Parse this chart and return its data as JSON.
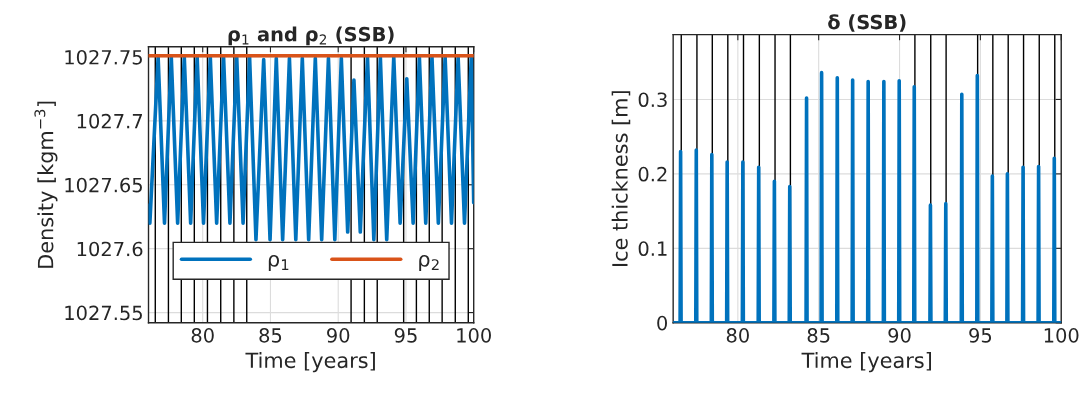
{
  "chart_data": [
    {
      "type": "line",
      "title": "ρ$_{1}$ and ρ$_{2}$ (SSB)",
      "xlabel": "Time [years]",
      "ylabel": "Density [kgm$^{−3}$]",
      "xlim": [
        76,
        100
      ],
      "xticks": [
        80,
        85,
        90,
        95,
        100
      ],
      "ylim": [
        1027.542,
        1027.758
      ],
      "yticks": [
        1027.55,
        1027.6,
        1027.65,
        1027.7,
        1027.75
      ],
      "grid": true,
      "legend": "bottom",
      "series": [
        {
          "name": "ρ$_{1}$",
          "color": "#0072bd",
          "x": [
            76,
            76.1,
            76.71,
            77.18,
            77.68,
            78.15,
            78.64,
            79.11,
            79.59,
            80.06,
            80.56,
            81.03,
            81.54,
            82.01,
            82.51,
            82.98,
            83.46,
            83.93,
            84.5,
            84.97,
            85.43,
            85.9,
            86.4,
            86.87,
            87.35,
            87.82,
            88.31,
            88.78,
            89.28,
            89.75,
            90.23,
            90.7,
            91.16,
            91.63,
            92.16,
            92.63,
            93.11,
            93.58,
            94.1,
            94.57,
            95.06,
            95.53,
            95.99,
            96.46,
            96.92,
            97.39,
            97.89,
            98.36,
            98.85,
            99.32,
            99.82,
            100
          ],
          "values": [
            1027.634,
            1027.62,
            1027.75,
            1027.62,
            1027.75,
            1027.62,
            1027.75,
            1027.62,
            1027.75,
            1027.62,
            1027.75,
            1027.62,
            1027.75,
            1027.62,
            1027.75,
            1027.62,
            1027.75,
            1027.607,
            1027.748,
            1027.607,
            1027.749,
            1027.607,
            1027.749,
            1027.607,
            1027.749,
            1027.607,
            1027.749,
            1027.607,
            1027.749,
            1027.607,
            1027.749,
            1027.613,
            1027.732,
            1027.613,
            1027.75,
            1027.607,
            1027.75,
            1027.607,
            1027.75,
            1027.62,
            1027.733,
            1027.62,
            1027.75,
            1027.62,
            1027.75,
            1027.62,
            1027.75,
            1027.62,
            1027.75,
            1027.62,
            1027.75,
            1027.636
          ]
        },
        {
          "name": "ρ$_{2}$",
          "color": "#d95319",
          "x": [
            76,
            100
          ],
          "values": [
            1027.751,
            1027.751
          ]
        }
      ],
      "ref_lines": [
        {
          "axis": "x",
          "value": 76.5,
          "color": "#000000"
        },
        {
          "axis": "x",
          "value": 77.47,
          "color": "#000000"
        },
        {
          "axis": "x",
          "value": 78.42,
          "color": "#000000"
        },
        {
          "axis": "x",
          "value": 79.38,
          "color": "#000000"
        },
        {
          "axis": "x",
          "value": 80.35,
          "color": "#000000"
        },
        {
          "axis": "x",
          "value": 81.33,
          "color": "#000000"
        },
        {
          "axis": "x",
          "value": 82.3,
          "color": "#000000"
        },
        {
          "axis": "x",
          "value": 83.25,
          "color": "#000000"
        },
        {
          "axis": "x",
          "value": 90.95,
          "color": "#000000"
        },
        {
          "axis": "x",
          "value": 91.93,
          "color": "#000000"
        },
        {
          "axis": "x",
          "value": 92.88,
          "color": "#000000"
        },
        {
          "axis": "x",
          "value": 94.83,
          "color": "#000000"
        },
        {
          "axis": "x",
          "value": 95.77,
          "color": "#000000"
        },
        {
          "axis": "x",
          "value": 96.72,
          "color": "#000000"
        },
        {
          "axis": "x",
          "value": 97.67,
          "color": "#000000"
        },
        {
          "axis": "x",
          "value": 98.64,
          "color": "#000000"
        },
        {
          "axis": "x",
          "value": 99.6,
          "color": "#000000"
        }
      ]
    },
    {
      "type": "line",
      "title": "δ (SSB)",
      "xlabel": "Time [years]",
      "ylabel": "Ice thickness [m]",
      "xlim": [
        76,
        100
      ],
      "xticks": [
        80,
        85,
        90,
        95,
        100
      ],
      "ylim": [
        0,
        0.387
      ],
      "yticks": [
        0,
        0.1,
        0.2,
        0.3
      ],
      "grid": true,
      "series": [
        {
          "color": "#0072bd",
          "x": [
            76,
            76.43,
            76.46,
            76.49,
            77.4,
            77.43,
            77.46,
            78.36,
            78.39,
            78.42,
            79.31,
            79.34,
            79.37,
            80.28,
            80.31,
            80.34,
            81.26,
            81.29,
            81.32,
            82.23,
            82.26,
            82.29,
            83.18,
            83.21,
            83.24,
            84.22,
            84.25,
            84.28,
            85.15,
            85.18,
            85.21,
            86.12,
            86.15,
            86.18,
            87.07,
            87.1,
            87.13,
            88.03,
            88.06,
            88.09,
            89.0,
            89.03,
            89.06,
            89.95,
            89.98,
            90.01,
            90.88,
            90.91,
            90.94,
            91.88,
            91.91,
            91.94,
            92.83,
            92.86,
            92.89,
            93.82,
            93.85,
            93.88,
            94.78,
            94.81,
            94.84,
            95.71,
            95.74,
            95.77,
            96.64,
            96.67,
            96.7,
            97.61,
            97.64,
            97.67,
            98.57,
            98.6,
            98.63,
            99.54,
            99.57,
            99.6,
            100
          ],
          "values": [
            0,
            0,
            0.23,
            0,
            0,
            0.232,
            0,
            0,
            0.226,
            0,
            0,
            0.216,
            0,
            0,
            0.216,
            0,
            0,
            0.209,
            0,
            0,
            0.19,
            0,
            0,
            0.183,
            0,
            0,
            0.302,
            0,
            0,
            0.336,
            0,
            0,
            0.329,
            0,
            0,
            0.326,
            0,
            0,
            0.324,
            0,
            0,
            0.324,
            0,
            0,
            0.325,
            0,
            0,
            0.317,
            0,
            0,
            0.158,
            0,
            0,
            0.16,
            0,
            0,
            0.307,
            0,
            0,
            0.332,
            0,
            0,
            0.197,
            0,
            0,
            0.2,
            0,
            0,
            0.209,
            0,
            0,
            0.21,
            0,
            0,
            0.221,
            0,
            0
          ]
        }
      ],
      "ref_lines": [
        {
          "axis": "x",
          "value": 76.5,
          "color": "#000000"
        },
        {
          "axis": "x",
          "value": 77.47,
          "color": "#000000"
        },
        {
          "axis": "x",
          "value": 78.42,
          "color": "#000000"
        },
        {
          "axis": "x",
          "value": 79.38,
          "color": "#000000"
        },
        {
          "axis": "x",
          "value": 80.35,
          "color": "#000000"
        },
        {
          "axis": "x",
          "value": 81.33,
          "color": "#000000"
        },
        {
          "axis": "x",
          "value": 82.3,
          "color": "#000000"
        },
        {
          "axis": "x",
          "value": 83.25,
          "color": "#000000"
        },
        {
          "axis": "x",
          "value": 90.95,
          "color": "#000000"
        },
        {
          "axis": "x",
          "value": 91.93,
          "color": "#000000"
        },
        {
          "axis": "x",
          "value": 92.88,
          "color": "#000000"
        },
        {
          "axis": "x",
          "value": 94.83,
          "color": "#000000"
        },
        {
          "axis": "x",
          "value": 95.77,
          "color": "#000000"
        },
        {
          "axis": "x",
          "value": 96.72,
          "color": "#000000"
        },
        {
          "axis": "x",
          "value": 97.67,
          "color": "#000000"
        },
        {
          "axis": "x",
          "value": 98.64,
          "color": "#000000"
        },
        {
          "axis": "x",
          "value": 99.6,
          "color": "#000000"
        }
      ]
    }
  ]
}
